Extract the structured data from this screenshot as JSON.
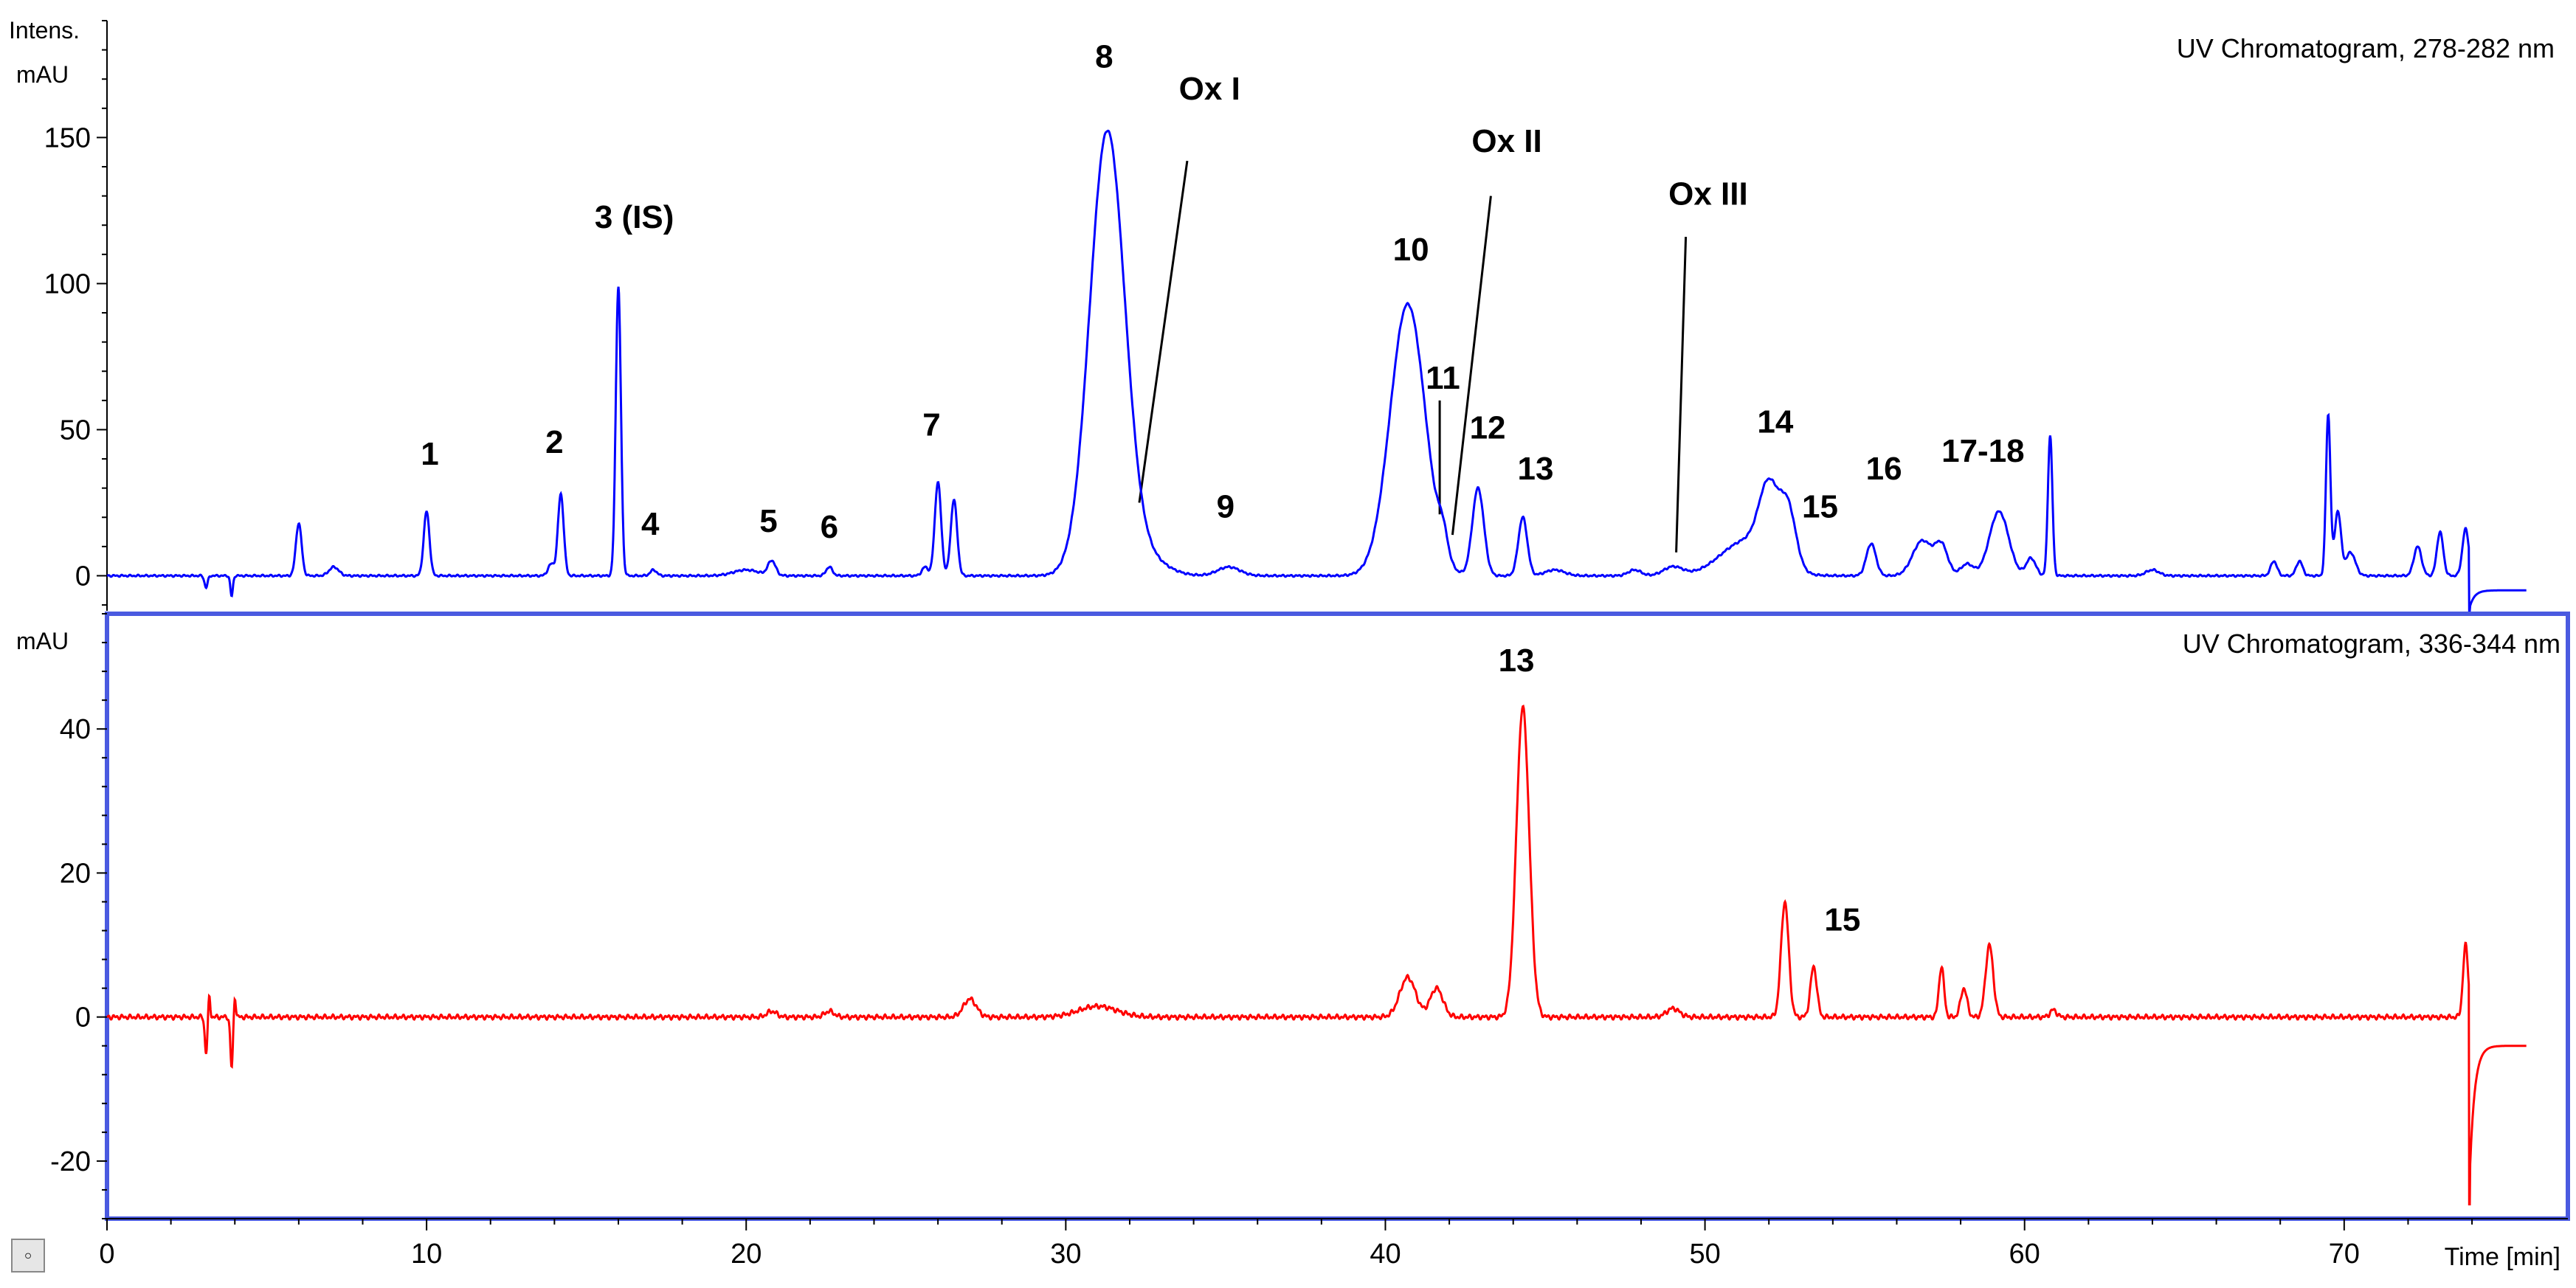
{
  "chart_data": [
    {
      "type": "line",
      "title": "UV Chromatogram, 278-282 nm",
      "ylabel_line1": "Intens.",
      "ylabel_line2": "mAU",
      "xlabel": "Time [min]",
      "xlim": [
        0,
        77
      ],
      "ylim": [
        -12,
        190
      ],
      "yticks": [
        0,
        50,
        100,
        150
      ],
      "xticks": [
        0,
        10,
        20,
        30,
        40,
        50,
        60,
        70
      ],
      "grid": false,
      "line_color": "#0000ff",
      "baseline_end": -5,
      "peaks": [
        {
          "rt": 3.1,
          "h": -4,
          "w": 0.05
        },
        {
          "rt": 3.9,
          "h": -7,
          "w": 0.04
        },
        {
          "rt": 6.0,
          "h": 18,
          "w": 0.09
        },
        {
          "rt": 7.1,
          "h": 3,
          "w": 0.15
        },
        {
          "rt": 10.0,
          "h": 22,
          "w": 0.09
        },
        {
          "rt": 13.9,
          "h": 4,
          "w": 0.1
        },
        {
          "rt": 14.2,
          "h": 28,
          "w": 0.09
        },
        {
          "rt": 16.0,
          "h": 99,
          "w": 0.08
        },
        {
          "rt": 17.1,
          "h": 2,
          "w": 0.1
        },
        {
          "rt": 20.0,
          "h": 2,
          "w": 0.4
        },
        {
          "rt": 20.8,
          "h": 5,
          "w": 0.12
        },
        {
          "rt": 22.6,
          "h": 3,
          "w": 0.1
        },
        {
          "rt": 25.6,
          "h": 3,
          "w": 0.1
        },
        {
          "rt": 26.0,
          "h": 32,
          "w": 0.1
        },
        {
          "rt": 26.5,
          "h": 26,
          "w": 0.1
        },
        {
          "rt": 31.3,
          "h": 152,
          "w": 0.55
        },
        {
          "rt": 32.6,
          "h": 5,
          "w": 0.6
        },
        {
          "rt": 35.1,
          "h": 3,
          "w": 0.35
        },
        {
          "rt": 40.7,
          "h": 93,
          "w": 0.55
        },
        {
          "rt": 41.8,
          "h": 8,
          "w": 0.15
        },
        {
          "rt": 42.9,
          "h": 30,
          "w": 0.18
        },
        {
          "rt": 44.3,
          "h": 20,
          "w": 0.14
        },
        {
          "rt": 45.3,
          "h": 2,
          "w": 0.3
        },
        {
          "rt": 47.8,
          "h": 2,
          "w": 0.2
        },
        {
          "rt": 49.0,
          "h": 3,
          "w": 0.3
        },
        {
          "rt": 51.3,
          "h": 12,
          "w": 0.8
        },
        {
          "rt": 52.0,
          "h": 24,
          "w": 0.3
        },
        {
          "rt": 52.6,
          "h": 20,
          "w": 0.25
        },
        {
          "rt": 55.2,
          "h": 11,
          "w": 0.15
        },
        {
          "rt": 56.8,
          "h": 12,
          "w": 0.3
        },
        {
          "rt": 57.4,
          "h": 10,
          "w": 0.2
        },
        {
          "rt": 58.2,
          "h": 4,
          "w": 0.2
        },
        {
          "rt": 59.2,
          "h": 22,
          "w": 0.3
        },
        {
          "rt": 60.2,
          "h": 6,
          "w": 0.15
        },
        {
          "rt": 60.8,
          "h": 48,
          "w": 0.07
        },
        {
          "rt": 64.0,
          "h": 2,
          "w": 0.2
        },
        {
          "rt": 67.8,
          "h": 5,
          "w": 0.1
        },
        {
          "rt": 68.6,
          "h": 5,
          "w": 0.1
        },
        {
          "rt": 69.5,
          "h": 55,
          "w": 0.07
        },
        {
          "rt": 69.8,
          "h": 22,
          "w": 0.1
        },
        {
          "rt": 70.2,
          "h": 8,
          "w": 0.15
        },
        {
          "rt": 72.3,
          "h": 10,
          "w": 0.12
        },
        {
          "rt": 73.0,
          "h": 15,
          "w": 0.1
        },
        {
          "rt": 73.8,
          "h": 16,
          "w": 0.1
        }
      ],
      "step": {
        "rt": 73.9,
        "min": -12,
        "after": -5
      },
      "annotations": [
        {
          "text": "1",
          "x": 10.1,
          "y": 38
        },
        {
          "text": "2",
          "x": 14.0,
          "y": 42
        },
        {
          "text": "3 (IS)",
          "x": 16.5,
          "y": 119
        },
        {
          "text": "4",
          "x": 17.0,
          "y": 14
        },
        {
          "text": "5",
          "x": 20.7,
          "y": 15
        },
        {
          "text": "6",
          "x": 22.6,
          "y": 13
        },
        {
          "text": "7",
          "x": 25.8,
          "y": 48
        },
        {
          "text": "8",
          "x": 31.2,
          "y": 174
        },
        {
          "text": "Ox I",
          "x": 34.5,
          "y": 163
        },
        {
          "text": "9",
          "x": 35.0,
          "y": 20
        },
        {
          "text": "10",
          "x": 40.8,
          "y": 108
        },
        {
          "text": "11",
          "x": 41.8,
          "y": 64
        },
        {
          "text": "12",
          "x": 43.2,
          "y": 47
        },
        {
          "text": "Ox II",
          "x": 43.8,
          "y": 145
        },
        {
          "text": "13",
          "x": 44.7,
          "y": 33
        },
        {
          "text": "Ox III",
          "x": 50.1,
          "y": 127
        },
        {
          "text": "14",
          "x": 52.2,
          "y": 49
        },
        {
          "text": "15",
          "x": 53.6,
          "y": 20
        },
        {
          "text": "16",
          "x": 55.6,
          "y": 33
        },
        {
          "text": "17-18",
          "x": 58.7,
          "y": 39
        }
      ],
      "leader_lines": [
        {
          "x1": 33.8,
          "y1": 142,
          "x2": 32.3,
          "y2": 25
        },
        {
          "x1": 41.7,
          "y1": 60,
          "x2": 41.7,
          "y2": 21
        },
        {
          "x1": 43.3,
          "y1": 130,
          "x2": 42.1,
          "y2": 14
        },
        {
          "x1": 49.4,
          "y1": 116,
          "x2": 49.1,
          "y2": 8
        }
      ]
    },
    {
      "type": "line",
      "title": "UV Chromatogram, 336-344 nm",
      "ylabel": "mAU",
      "xlabel": "Time [min]",
      "xlim": [
        0,
        77
      ],
      "ylim": [
        -28,
        56
      ],
      "yticks": [
        -20,
        0,
        20,
        40
      ],
      "xticks": [
        0,
        10,
        20,
        30,
        40,
        50,
        60,
        70
      ],
      "grid": false,
      "line_color": "#ff0000",
      "baseline_end": -2,
      "peaks": [
        {
          "rt": 3.1,
          "h": -5,
          "w": 0.04
        },
        {
          "rt": 3.2,
          "h": 3,
          "w": 0.03
        },
        {
          "rt": 3.9,
          "h": -7,
          "w": 0.04
        },
        {
          "rt": 4.0,
          "h": 3,
          "w": 0.03
        },
        {
          "rt": 20.8,
          "h": 0.8,
          "w": 0.15
        },
        {
          "rt": 22.6,
          "h": 0.8,
          "w": 0.15
        },
        {
          "rt": 27.0,
          "h": 2.5,
          "w": 0.2
        },
        {
          "rt": 31.0,
          "h": 1.5,
          "w": 0.6
        },
        {
          "rt": 40.7,
          "h": 5.5,
          "w": 0.25
        },
        {
          "rt": 41.6,
          "h": 4,
          "w": 0.2
        },
        {
          "rt": 44.3,
          "h": 43,
          "w": 0.2
        },
        {
          "rt": 49.0,
          "h": 1.2,
          "w": 0.2
        },
        {
          "rt": 52.5,
          "h": 16,
          "w": 0.12
        },
        {
          "rt": 53.4,
          "h": 7,
          "w": 0.1
        },
        {
          "rt": 57.4,
          "h": 7,
          "w": 0.08
        },
        {
          "rt": 58.1,
          "h": 4,
          "w": 0.1
        },
        {
          "rt": 58.9,
          "h": 10,
          "w": 0.12
        },
        {
          "rt": 60.9,
          "h": 1,
          "w": 0.1
        },
        {
          "rt": 73.8,
          "h": 10,
          "w": 0.08
        }
      ],
      "step": {
        "rt": 73.9,
        "min": -26,
        "after": -4
      },
      "annotations": [
        {
          "text": "13",
          "x": 44.1,
          "y": 48
        },
        {
          "text": "15",
          "x": 54.3,
          "y": 12
        }
      ]
    }
  ],
  "corner_glyph": "◦"
}
